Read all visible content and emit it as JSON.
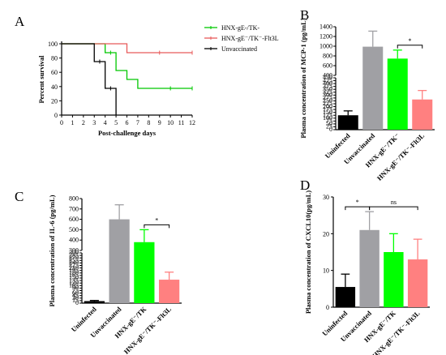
{
  "chart_data": [
    {
      "letter": "A",
      "type": "line",
      "title": "",
      "xlabel": "Post-challenge days",
      "ylabel": "Percent survival",
      "xlim": [
        0,
        12
      ],
      "ylim": [
        0,
        100
      ],
      "xticks": [
        0,
        1,
        2,
        3,
        4,
        5,
        6,
        7,
        8,
        9,
        10,
        11,
        12
      ],
      "yticks": [
        0,
        20,
        40,
        60,
        80,
        100
      ],
      "legend_position": "top-right",
      "series": [
        {
          "name": "HNX-gE-/TK-",
          "color": "#00c800",
          "steps": [
            [
              0,
              100
            ],
            [
              4,
              100
            ],
            [
              4,
              87.5
            ],
            [
              5,
              87.5
            ],
            [
              5,
              62.5
            ],
            [
              6,
              62.5
            ],
            [
              6,
              50
            ],
            [
              7,
              50
            ],
            [
              7,
              37.5
            ],
            [
              12,
              37.5
            ]
          ],
          "censor": [
            [
              4.5,
              87.5
            ],
            [
              10,
              37.5
            ],
            [
              12,
              37.5
            ]
          ]
        },
        {
          "name": "HNX-gE⁻/TK⁻-Flt3L",
          "color": "#e85a5a",
          "steps": [
            [
              0,
              100
            ],
            [
              6,
              100
            ],
            [
              6,
              87.5
            ],
            [
              12,
              87.5
            ]
          ],
          "censor": [
            [
              9,
              87.5
            ],
            [
              12,
              87.5
            ]
          ]
        },
        {
          "name": "Unvaccinated",
          "color": "#000000",
          "steps": [
            [
              0,
              100
            ],
            [
              3,
              100
            ],
            [
              3,
              75
            ],
            [
              4,
              75
            ],
            [
              4,
              37.5
            ],
            [
              5,
              37.5
            ],
            [
              5,
              0
            ]
          ],
          "censor": [
            [
              3.5,
              75
            ],
            [
              4.5,
              37.5
            ]
          ]
        }
      ]
    },
    {
      "letter": "B",
      "type": "bar",
      "ylabel": "Plasma concentration of MCP-1 (pg/mL)",
      "categories": [
        "Uninfected",
        "Unvaccinated",
        "HNX-gE⁻/TK⁻",
        "HNX-gE⁻/TK⁻-Flt3L"
      ],
      "values": [
        125,
        990,
        745,
        262
      ],
      "errors": [
        38,
        320,
        175,
        78
      ],
      "colors": [
        "#000000",
        "#a0a0a4",
        "#00ff00",
        "#ff8080"
      ],
      "axis_break": {
        "lower": [
          0,
          450
        ],
        "upper": [
          400,
          1400
        ]
      },
      "yticks_lower": [
        0,
        25,
        50,
        75,
        100,
        125,
        150,
        175,
        200,
        225,
        250,
        275,
        300,
        325,
        350,
        375,
        400,
        425,
        450
      ],
      "yticks_upper": [
        400,
        600,
        800,
        1000,
        1200,
        1400
      ],
      "significance": [
        {
          "from": 2,
          "to": 3,
          "label": "*"
        }
      ]
    },
    {
      "letter": "C",
      "type": "bar",
      "ylabel": "Plasma concentration of IL-6 (pg/mL)",
      "categories": [
        "Uninfected",
        "Unvaccinated",
        "HNX-gE⁻/TK",
        "HNX-gE⁻/TK⁻-Flt3L"
      ],
      "values": [
        12,
        600,
        380,
        140
      ],
      "errors": [
        4,
        140,
        120,
        45
      ],
      "colors": [
        "#000000",
        "#a0a0a4",
        "#00ff00",
        "#ff8080"
      ],
      "axis_break": {
        "lower": [
          0,
          300
        ],
        "upper": [
          300,
          800
        ]
      },
      "yticks_lower": [
        0,
        15,
        30,
        45,
        60,
        75,
        90,
        105,
        120,
        135,
        150,
        165,
        180,
        195,
        210,
        225,
        240,
        255,
        270,
        285,
        300
      ],
      "yticks_upper": [
        300,
        400,
        500,
        600,
        700,
        800
      ],
      "significance": [
        {
          "from": 2,
          "to": 3,
          "label": "*"
        }
      ]
    },
    {
      "letter": "D",
      "type": "bar",
      "ylabel": "Plasma concentration of CXCL10(pg/mL)",
      "categories": [
        "Uninfected",
        "Unvaccinated",
        "HNX-gE⁻/TK",
        "HNX-gE⁻/TK⁻-Flt3L"
      ],
      "values": [
        5.5,
        21,
        15,
        13
      ],
      "errors": [
        3.5,
        5,
        5,
        5.5
      ],
      "colors": [
        "#000000",
        "#a0a0a4",
        "#00ff00",
        "#ff8080"
      ],
      "ylim": [
        0,
        30
      ],
      "yticks": [
        0,
        10,
        20,
        30
      ],
      "significance": [
        {
          "from": 0,
          "to": 1,
          "label": "*"
        },
        {
          "from": 1,
          "to": 3,
          "label": "ns"
        }
      ]
    }
  ]
}
